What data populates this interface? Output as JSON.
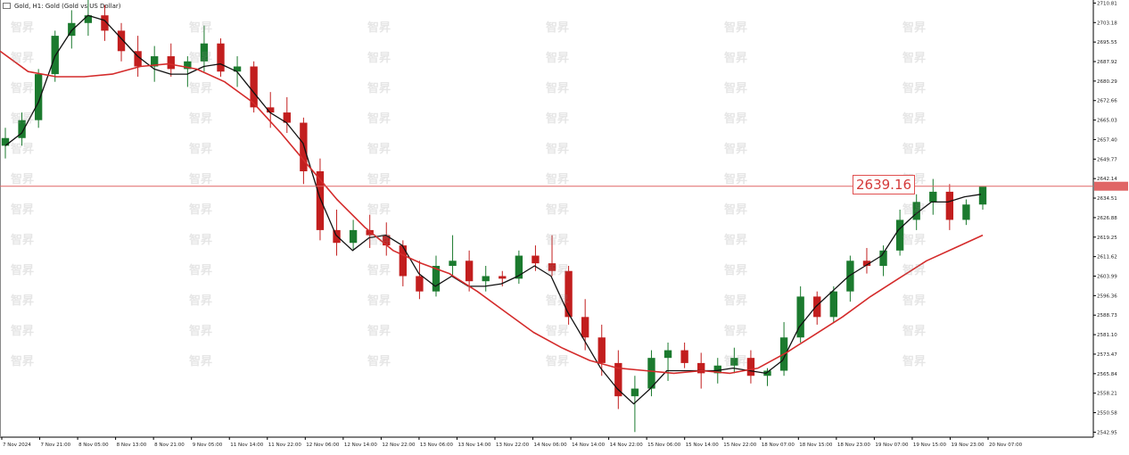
{
  "header": {
    "symbol_line": "Gold, H1:  Gold (Gold vs US Dollar)",
    "icon": "chart-window-icon"
  },
  "watermark": {
    "text": "智昇"
  },
  "price_label": {
    "value": "2639.16"
  },
  "colors": {
    "bull_candle": "#1b7a2e",
    "bear_candle": "#c21e1e",
    "ma_fast": "#111111",
    "ma_slow": "#d42b2b",
    "price_line": "#e06666",
    "axis": "#000000"
  },
  "chart_data": {
    "type": "candlestick",
    "title": "",
    "xlabel": "",
    "ylabel": "",
    "y_ticks": [
      "2710.81",
      "2703.18",
      "2695.55",
      "2687.92",
      "2680.29",
      "2672.66",
      "2665.03",
      "2657.40",
      "2649.77",
      "2642.14",
      "2634.51",
      "2626.88",
      "2619.25",
      "2611.62",
      "2603.99",
      "2596.36",
      "2588.73",
      "2581.10",
      "2573.47",
      "2565.84",
      "2558.21",
      "2550.58",
      "2542.95"
    ],
    "x_ticks": [
      "7 Nov 2024",
      "7 Nov 21:00",
      "8 Nov 05:00",
      "8 Nov 13:00",
      "8 Nov 21:00",
      "9 Nov 05:00",
      "11 Nov 14:00",
      "11 Nov 22:00",
      "12 Nov 06:00",
      "12 Nov 14:00",
      "12 Nov 22:00",
      "13 Nov 06:00",
      "13 Nov 14:00",
      "13 Nov 22:00",
      "14 Nov 06:00",
      "14 Nov 14:00",
      "14 Nov 22:00",
      "15 Nov 06:00",
      "15 Nov 14:00",
      "15 Nov 22:00",
      "18 Nov 07:00",
      "18 Nov 15:00",
      "18 Nov 23:00",
      "19 Nov 07:00",
      "19 Nov 15:00",
      "19 Nov 23:00",
      "20 Nov 07:00"
    ],
    "ylim": [
      2541.0,
      2712.0
    ],
    "current_price": 2639.16,
    "series": [
      {
        "name": "",
        "kind": "ma_fast",
        "values": [
          2655,
          2660,
          2672,
          2690,
          2700,
          2706,
          2704,
          2697,
          2690,
          2685,
          2683,
          2683,
          2686,
          2687,
          2684,
          2676,
          2668,
          2664,
          2656,
          2635,
          2620,
          2614,
          2619,
          2620,
          2616,
          2605,
          2600,
          2604,
          2600,
          2600,
          2601,
          2604,
          2608,
          2604,
          2590,
          2579,
          2568,
          2560,
          2554,
          2560,
          2567,
          2567,
          2567,
          2567,
          2568,
          2567,
          2566,
          2571,
          2584,
          2592,
          2598,
          2604,
          2608,
          2612,
          2622,
          2628,
          2633,
          2633,
          2635,
          2636
        ]
      },
      {
        "name": "",
        "kind": "ma_slow",
        "values": [
          2692,
          2684,
          2682,
          2682,
          2683,
          2686,
          2687,
          2685,
          2680,
          2672,
          2660,
          2647,
          2634,
          2623,
          2614,
          2609,
          2605,
          2598,
          2590,
          2582,
          2576,
          2571,
          2568,
          2567,
          2566,
          2567,
          2566,
          2568,
          2574,
          2581,
          2588,
          2596,
          2603,
          2610,
          2615,
          2620
        ]
      }
    ],
    "candles": [
      {
        "o": 2655,
        "h": 2662,
        "l": 2650,
        "c": 2658
      },
      {
        "o": 2658,
        "h": 2668,
        "l": 2655,
        "c": 2665
      },
      {
        "o": 2665,
        "h": 2685,
        "l": 2662,
        "c": 2683
      },
      {
        "o": 2683,
        "h": 2700,
        "l": 2680,
        "c": 2698
      },
      {
        "o": 2698,
        "h": 2708,
        "l": 2693,
        "c": 2703
      },
      {
        "o": 2703,
        "h": 2712,
        "l": 2698,
        "c": 2706
      },
      {
        "o": 2706,
        "h": 2710,
        "l": 2696,
        "c": 2700
      },
      {
        "o": 2700,
        "h": 2703,
        "l": 2688,
        "c": 2692
      },
      {
        "o": 2692,
        "h": 2698,
        "l": 2682,
        "c": 2686
      },
      {
        "o": 2686,
        "h": 2694,
        "l": 2680,
        "c": 2690
      },
      {
        "o": 2690,
        "h": 2695,
        "l": 2682,
        "c": 2685
      },
      {
        "o": 2685,
        "h": 2690,
        "l": 2678,
        "c": 2688
      },
      {
        "o": 2688,
        "h": 2702,
        "l": 2684,
        "c": 2695
      },
      {
        "o": 2695,
        "h": 2697,
        "l": 2682,
        "c": 2684
      },
      {
        "o": 2684,
        "h": 2690,
        "l": 2678,
        "c": 2686
      },
      {
        "o": 2686,
        "h": 2688,
        "l": 2668,
        "c": 2670
      },
      {
        "o": 2670,
        "h": 2676,
        "l": 2662,
        "c": 2668
      },
      {
        "o": 2668,
        "h": 2674,
        "l": 2660,
        "c": 2664
      },
      {
        "o": 2664,
        "h": 2666,
        "l": 2640,
        "c": 2645
      },
      {
        "o": 2645,
        "h": 2650,
        "l": 2618,
        "c": 2622
      },
      {
        "o": 2622,
        "h": 2630,
        "l": 2612,
        "c": 2617
      },
      {
        "o": 2617,
        "h": 2626,
        "l": 2614,
        "c": 2622
      },
      {
        "o": 2622,
        "h": 2628,
        "l": 2615,
        "c": 2620
      },
      {
        "o": 2620,
        "h": 2625,
        "l": 2612,
        "c": 2616
      },
      {
        "o": 2616,
        "h": 2618,
        "l": 2600,
        "c": 2604
      },
      {
        "o": 2604,
        "h": 2610,
        "l": 2595,
        "c": 2598
      },
      {
        "o": 2598,
        "h": 2612,
        "l": 2596,
        "c": 2608
      },
      {
        "o": 2608,
        "h": 2620,
        "l": 2604,
        "c": 2610
      },
      {
        "o": 2610,
        "h": 2614,
        "l": 2598,
        "c": 2602
      },
      {
        "o": 2602,
        "h": 2608,
        "l": 2598,
        "c": 2604
      },
      {
        "o": 2604,
        "h": 2606,
        "l": 2600,
        "c": 2603
      },
      {
        "o": 2603,
        "h": 2614,
        "l": 2601,
        "c": 2612
      },
      {
        "o": 2612,
        "h": 2616,
        "l": 2606,
        "c": 2609
      },
      {
        "o": 2609,
        "h": 2620,
        "l": 2604,
        "c": 2606
      },
      {
        "o": 2606,
        "h": 2608,
        "l": 2585,
        "c": 2588
      },
      {
        "o": 2588,
        "h": 2595,
        "l": 2575,
        "c": 2580
      },
      {
        "o": 2580,
        "h": 2585,
        "l": 2565,
        "c": 2570
      },
      {
        "o": 2570,
        "h": 2575,
        "l": 2552,
        "c": 2557
      },
      {
        "o": 2557,
        "h": 2565,
        "l": 2543,
        "c": 2560
      },
      {
        "o": 2560,
        "h": 2575,
        "l": 2557,
        "c": 2572
      },
      {
        "o": 2572,
        "h": 2578,
        "l": 2563,
        "c": 2575
      },
      {
        "o": 2575,
        "h": 2578,
        "l": 2568,
        "c": 2570
      },
      {
        "o": 2570,
        "h": 2574,
        "l": 2560,
        "c": 2566
      },
      {
        "o": 2566,
        "h": 2572,
        "l": 2562,
        "c": 2569
      },
      {
        "o": 2569,
        "h": 2576,
        "l": 2566,
        "c": 2572
      },
      {
        "o": 2572,
        "h": 2575,
        "l": 2562,
        "c": 2565
      },
      {
        "o": 2565,
        "h": 2568,
        "l": 2561,
        "c": 2567
      },
      {
        "o": 2567,
        "h": 2586,
        "l": 2565,
        "c": 2580
      },
      {
        "o": 2580,
        "h": 2600,
        "l": 2578,
        "c": 2596
      },
      {
        "o": 2596,
        "h": 2598,
        "l": 2585,
        "c": 2588
      },
      {
        "o": 2588,
        "h": 2600,
        "l": 2586,
        "c": 2598
      },
      {
        "o": 2598,
        "h": 2612,
        "l": 2594,
        "c": 2610
      },
      {
        "o": 2610,
        "h": 2615,
        "l": 2605,
        "c": 2608
      },
      {
        "o": 2608,
        "h": 2616,
        "l": 2604,
        "c": 2614
      },
      {
        "o": 2614,
        "h": 2630,
        "l": 2612,
        "c": 2626
      },
      {
        "o": 2626,
        "h": 2636,
        "l": 2622,
        "c": 2633
      },
      {
        "o": 2633,
        "h": 2642,
        "l": 2628,
        "c": 2637
      },
      {
        "o": 2637,
        "h": 2640,
        "l": 2622,
        "c": 2626
      },
      {
        "o": 2626,
        "h": 2634,
        "l": 2624,
        "c": 2632
      },
      {
        "o": 2632,
        "h": 2638,
        "l": 2630,
        "c": 2639
      }
    ]
  }
}
